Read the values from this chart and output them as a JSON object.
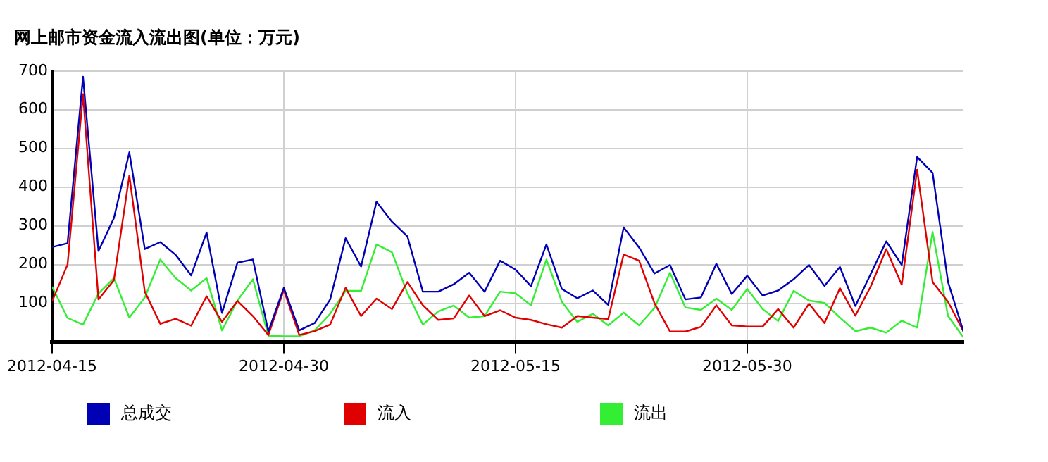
{
  "chart_data": {
    "type": "line",
    "title": "网上邮市资金流入流出图(单位：万元)",
    "x": [
      "2012-04-15",
      "2012-04-16",
      "2012-04-17",
      "2012-04-18",
      "2012-04-19",
      "2012-04-20",
      "2012-04-21",
      "2012-04-22",
      "2012-04-23",
      "2012-04-24",
      "2012-04-25",
      "2012-04-26",
      "2012-04-27",
      "2012-04-28",
      "2012-04-29",
      "2012-04-30",
      "2012-05-01",
      "2012-05-02",
      "2012-05-03",
      "2012-05-04",
      "2012-05-05",
      "2012-05-06",
      "2012-05-07",
      "2012-05-08",
      "2012-05-09",
      "2012-05-10",
      "2012-05-11",
      "2012-05-12",
      "2012-05-13",
      "2012-05-14",
      "2012-05-15",
      "2012-05-16",
      "2012-05-17",
      "2012-05-18",
      "2012-05-19",
      "2012-05-20",
      "2012-05-21",
      "2012-05-22",
      "2012-05-23",
      "2012-05-24",
      "2012-05-25",
      "2012-05-26",
      "2012-05-27",
      "2012-05-28",
      "2012-05-29",
      "2012-05-30",
      "2012-05-31",
      "2012-06-01",
      "2012-06-02",
      "2012-06-03",
      "2012-06-04",
      "2012-06-05",
      "2012-06-06",
      "2012-06-07",
      "2012-06-08",
      "2012-06-09",
      "2012-06-10",
      "2012-06-11",
      "2012-06-12",
      "2012-06-13"
    ],
    "series": [
      {
        "name": "总成交",
        "color": "#0000b4",
        "values": [
          245,
          255,
          685,
          235,
          320,
          490,
          240,
          258,
          225,
          172,
          283,
          75,
          205,
          213,
          27,
          140,
          30,
          49,
          110,
          268,
          195,
          362,
          311,
          273,
          130,
          130,
          149,
          179,
          130,
          210,
          187,
          144,
          252,
          137,
          113,
          133,
          96,
          296,
          244,
          177,
          199,
          110,
          115,
          202,
          124,
          171,
          120,
          133,
          162,
          199,
          145,
          194,
          93,
          176,
          260,
          199,
          478,
          437,
          155,
          27
        ]
      },
      {
        "name": "流入",
        "color": "#e00000",
        "values": [
          105,
          200,
          640,
          110,
          160,
          430,
          130,
          47,
          60,
          42,
          118,
          52,
          106,
          67,
          18,
          134,
          18,
          28,
          45,
          140,
          67,
          112,
          85,
          155,
          95,
          57,
          61,
          120,
          67,
          82,
          63,
          57,
          46,
          37,
          67,
          63,
          59,
          226,
          210,
          100,
          27,
          27,
          39,
          95,
          43,
          40,
          40,
          85,
          37,
          99,
          49,
          139,
          68,
          144,
          240,
          148,
          445,
          155,
          104,
          27
        ]
      },
      {
        "name": "流出",
        "color": "#33ee33",
        "values": [
          143,
          62,
          45,
          125,
          165,
          63,
          115,
          213,
          165,
          133,
          165,
          30,
          107,
          162,
          16,
          15,
          15,
          30,
          73,
          132,
          132,
          252,
          232,
          126,
          45,
          79,
          94,
          63,
          67,
          130,
          126,
          95,
          213,
          104,
          52,
          73,
          43,
          76,
          43,
          88,
          179,
          89,
          83,
          112,
          83,
          137,
          85,
          54,
          132,
          107,
          101,
          63,
          28,
          37,
          24,
          55,
          37,
          284,
          67,
          12
        ]
      }
    ],
    "xlim": [
      "2012-04-15",
      "2012-06-13"
    ],
    "xticks": [
      "2012-04-15",
      "2012-04-30",
      "2012-05-15",
      "2012-05-30"
    ],
    "ylim": [
      0,
      700
    ],
    "yticks": [
      100,
      200,
      300,
      400,
      500,
      600,
      700
    ],
    "grid": true,
    "legend": "bottom",
    "marker": "none",
    "line_style": "solid"
  }
}
